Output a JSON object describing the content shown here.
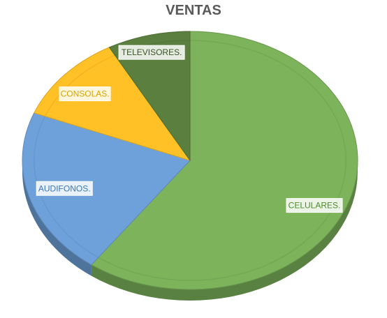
{
  "chart_data": {
    "type": "pie",
    "title": "VENTAS",
    "categories": [
      "CELULARES.",
      "AUDIFONOS.",
      "CONSOLAS.",
      "TELEVISORES."
    ],
    "values": [
      60,
      21,
      11,
      8
    ],
    "colors": [
      "#7cb35b",
      "#6ea1d9",
      "#ffc125",
      "#5a7f3f"
    ],
    "label_colors": [
      "#4d8b2d",
      "#3b77b8",
      "#d9a400",
      "#375324"
    ],
    "legend": "none",
    "style": "3d-exploded-labels-in-boxes"
  }
}
